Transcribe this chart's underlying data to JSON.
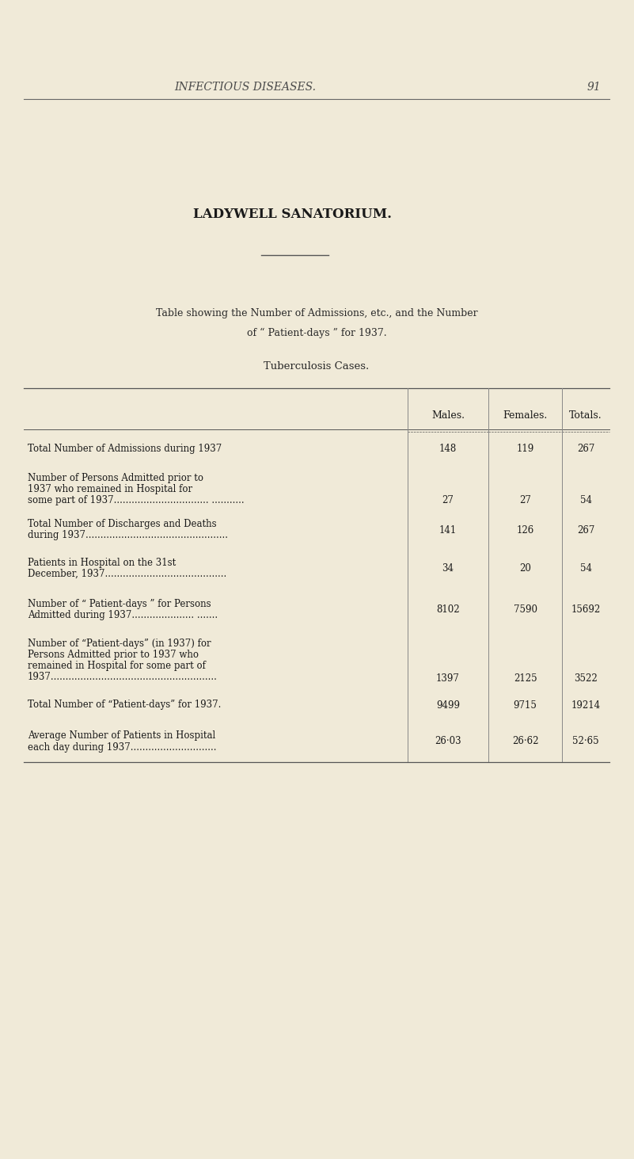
{
  "bg_color": "#f0ead8",
  "header_text": "INFECTIOUS DISEASES.",
  "page_number": "91",
  "main_title": "LADYWELL SANATORIUM.",
  "subtitle_line1": "Table showing the Number of Admissions, etc., and the Number",
  "subtitle_line2": "of “ Patient-days ” for 1937.",
  "section_title": "Tuberculosis Cases.",
  "col_headers": [
    "Males.",
    "Females.",
    "Totals."
  ],
  "rows": [
    {
      "label_lines": [
        "Total Number of Admissions during 1937"
      ],
      "values": [
        "148",
        "119",
        "267"
      ]
    },
    {
      "label_lines": [
        "Number of Persons Admitted prior to",
        "1937 who remained in Hospital for",
        "some part of 1937................................ ..........."
      ],
      "values": [
        "27",
        "27",
        "54"
      ]
    },
    {
      "label_lines": [
        "Total Number of Discharges and Deaths",
        "during 1937................................................"
      ],
      "values": [
        "141",
        "126",
        "267"
      ]
    },
    {
      "label_lines": [
        "Patients in Hospital on the 31st",
        "December, 1937........................................."
      ],
      "values": [
        "34",
        "20",
        "54"
      ]
    },
    {
      "label_lines": [
        "Number of “ Patient-days ” for Persons",
        "Admitted during 1937..................... ......."
      ],
      "values": [
        "8102",
        "7590",
        "15692"
      ]
    },
    {
      "label_lines": [
        "Number of “Patient-days” (in 1937) for",
        "Persons Admitted prior to 1937 who",
        "remained in Hospital for some part of",
        "1937........................................................"
      ],
      "values": [
        "1397",
        "2125",
        "3522"
      ]
    },
    {
      "label_lines": [
        "Total Number of “Patient-days” for 1937."
      ],
      "values": [
        "9499",
        "9715",
        "19214"
      ]
    },
    {
      "label_lines": [
        "Average Number of Patients in Hospital",
        "each day during 1937............................."
      ],
      "values": [
        "26·03",
        "26·62",
        "52·65"
      ]
    }
  ]
}
